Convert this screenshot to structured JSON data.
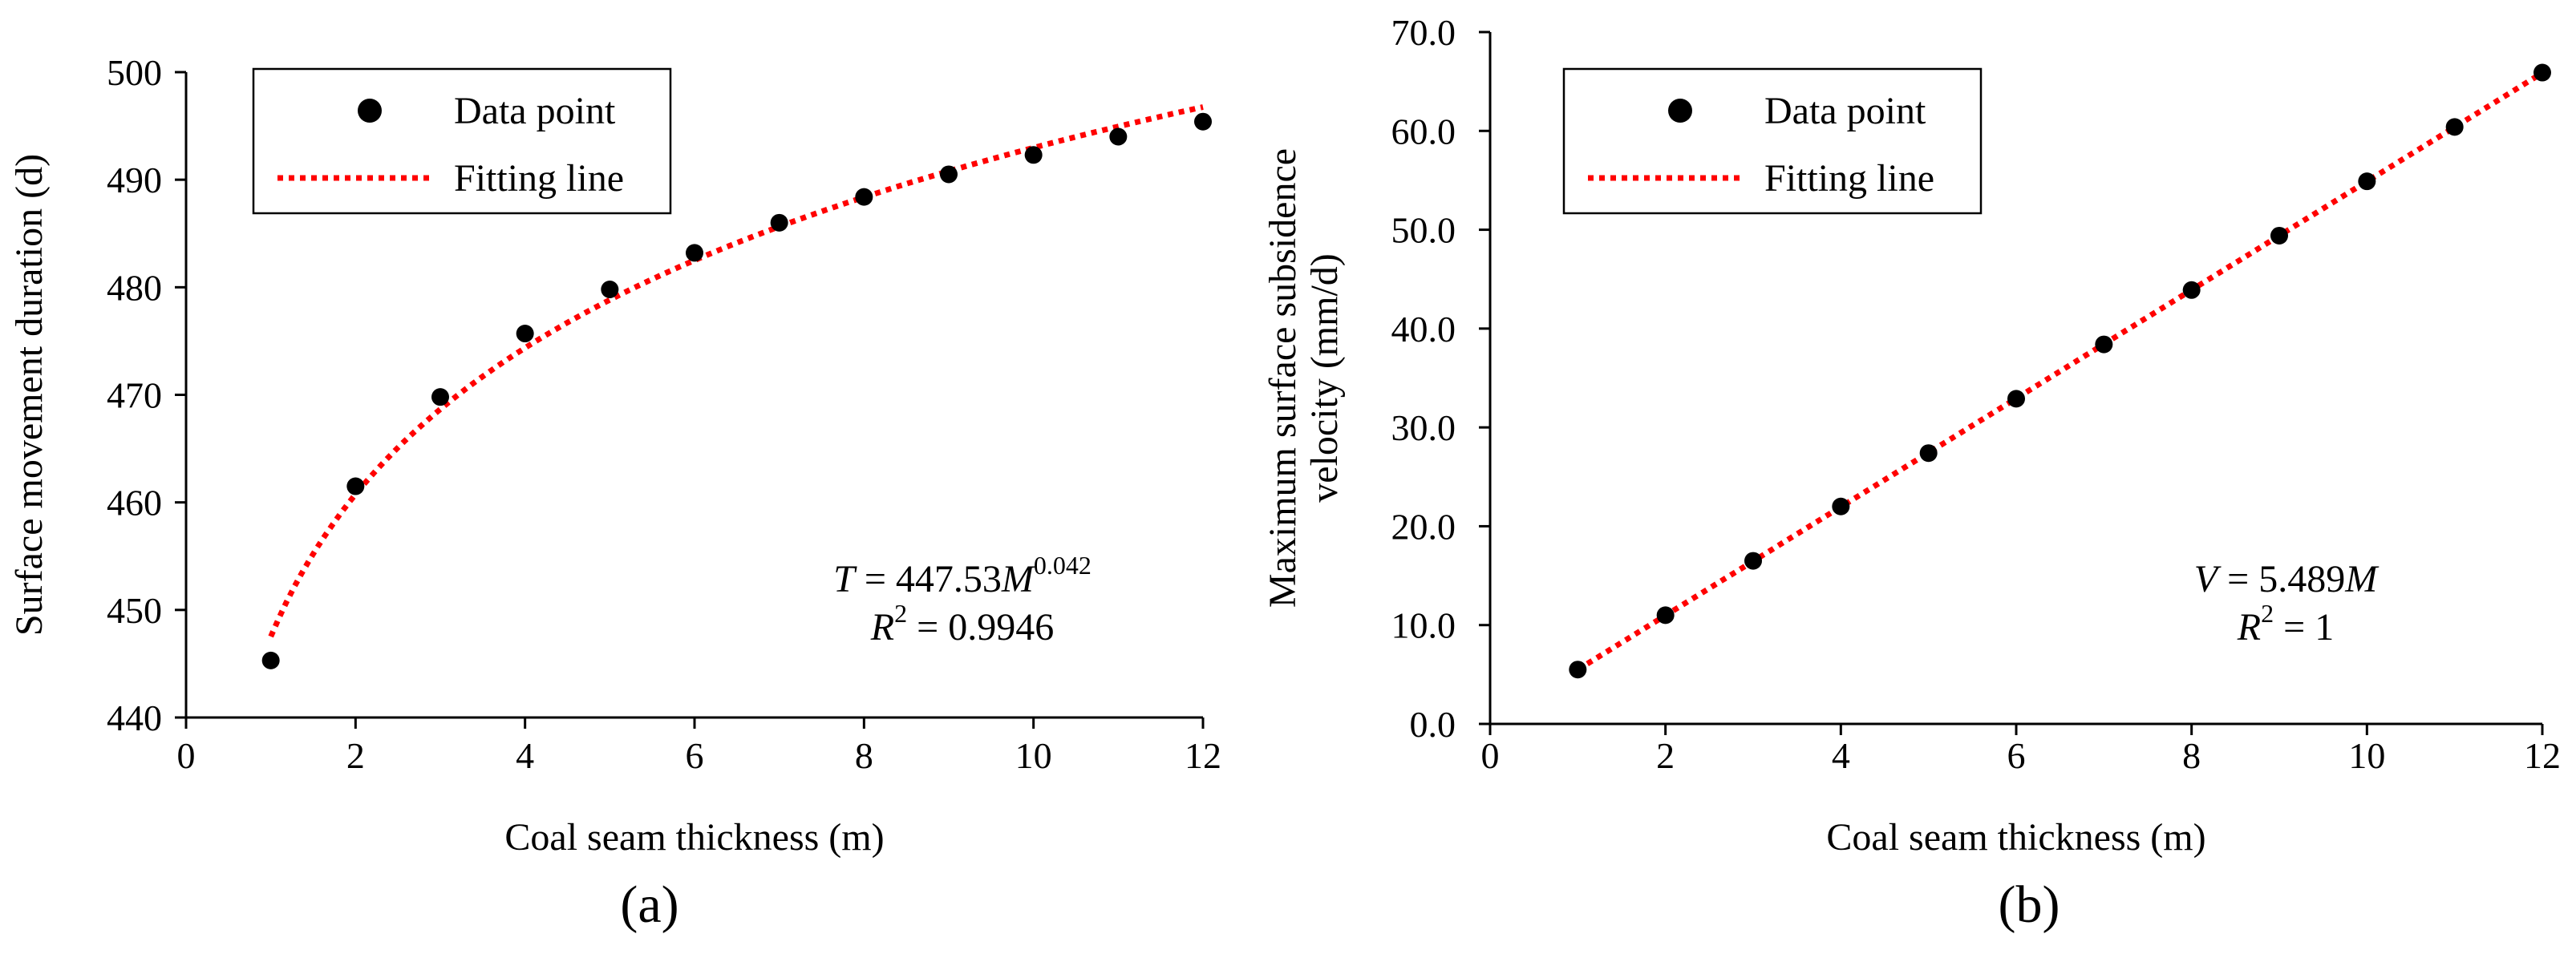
{
  "chart_data": [
    {
      "type": "scatter",
      "panel_label": "(a)",
      "title": "",
      "xlabel": "Coal seam thickness (m)",
      "ylabel": "Surface movement duration (d)",
      "xlim": [
        0,
        12
      ],
      "ylim": [
        440,
        500
      ],
      "xticks": [
        0,
        2,
        4,
        6,
        8,
        10,
        12
      ],
      "yticks": [
        440,
        450,
        460,
        470,
        480,
        490,
        500
      ],
      "grid": false,
      "legend": {
        "position": "top-left",
        "entries": [
          "Data point",
          "Fitting line"
        ]
      },
      "series": [
        {
          "name": "Data point",
          "x": [
            1,
            2,
            3,
            4,
            5,
            6,
            7,
            8,
            9,
            10,
            11,
            12
          ],
          "values": [
            445.3,
            461.5,
            469.8,
            475.7,
            479.8,
            483.2,
            486.0,
            488.4,
            490.5,
            492.3,
            494.0,
            495.4
          ]
        }
      ],
      "fit": {
        "name": "Fitting line",
        "form": "power",
        "coefficient": 447.53,
        "exponent": 0.042,
        "x_range": [
          1,
          12
        ]
      },
      "equation": {
        "lhs": "T",
        "equals": " = 447.53",
        "var": "M",
        "exponent": "0.042",
        "r2_label": "R",
        "r2_sup": "2",
        "r2_value": " = 0.9946"
      }
    },
    {
      "type": "scatter",
      "panel_label": "(b)",
      "title": "",
      "xlabel": "Coal seam thickness (m)",
      "ylabel_line1": "Maximum surface subsidence",
      "ylabel_line2": "velocity (mm/d)",
      "xlim": [
        0,
        12
      ],
      "ylim": [
        0,
        70
      ],
      "xticks": [
        0,
        2,
        4,
        6,
        8,
        10,
        12
      ],
      "yticks": [
        "0.0",
        "10.0",
        "20.0",
        "30.0",
        "40.0",
        "50.0",
        "60.0",
        "70.0"
      ],
      "grid": false,
      "legend": {
        "position": "top-left",
        "entries": [
          "Data point",
          "Fitting line"
        ]
      },
      "series": [
        {
          "name": "Data point",
          "x": [
            1,
            2,
            3,
            4,
            5,
            6,
            7,
            8,
            9,
            10,
            11,
            12
          ],
          "values": [
            5.5,
            11.0,
            16.5,
            22.0,
            27.4,
            32.9,
            38.4,
            43.9,
            49.4,
            54.9,
            60.4,
            65.9
          ]
        }
      ],
      "fit": {
        "name": "Fitting line",
        "form": "linear",
        "slope": 5.489,
        "x_range": [
          1,
          12
        ]
      },
      "equation": {
        "lhs": "V",
        "equals": " = 5.489",
        "var": "M",
        "r2_label": "R",
        "r2_sup": "2",
        "r2_value": " = 1"
      }
    }
  ],
  "colors": {
    "points": "#000000",
    "fit_line": "#ff0000",
    "axes": "#000000"
  },
  "legend_marker_icon": "filled-circle-icon",
  "legend_line_icon": "dotted-line-icon"
}
